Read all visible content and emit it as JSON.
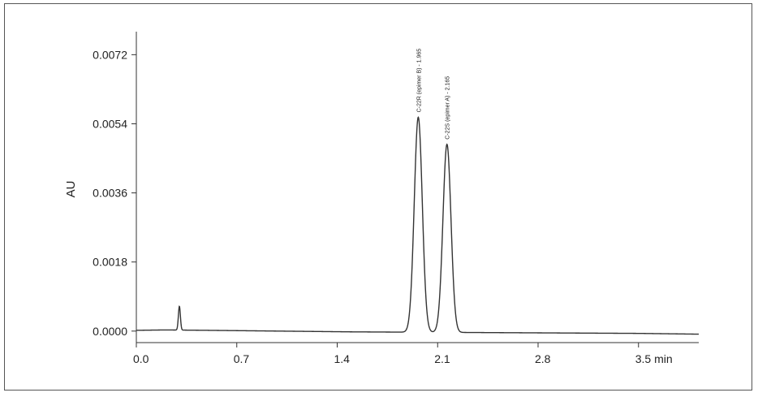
{
  "chart_data": {
    "type": "line",
    "ylabel": "AU",
    "xlabel": "",
    "x_tick_labels": [
      "0.0",
      "0.7",
      "1.4",
      "2.1",
      "2.8",
      "3.5 min"
    ],
    "x_ticks": [
      0.0,
      0.7,
      1.4,
      2.1,
      2.8,
      3.5
    ],
    "y_tick_labels": [
      "0.0000",
      "0.0018",
      "0.0036",
      "0.0054",
      "0.0072"
    ],
    "y_ticks": [
      0.0,
      0.0018,
      0.0036,
      0.0054,
      0.0072
    ],
    "xlim": [
      0.0,
      3.92
    ],
    "ylim": [
      -0.0003,
      0.0078
    ],
    "grid": false,
    "line_color": "#333333",
    "baseline": [
      {
        "x": 0.0,
        "y": 2e-05
      },
      {
        "x": 0.2,
        "y": 3e-05
      },
      {
        "x": 0.5,
        "y": 2e-05
      },
      {
        "x": 1.0,
        "y": 0.0
      },
      {
        "x": 1.5,
        "y": -2e-05
      },
      {
        "x": 2.5,
        "y": -4e-05
      },
      {
        "x": 3.0,
        "y": -5e-05
      },
      {
        "x": 3.5,
        "y": -6e-05
      },
      {
        "x": 3.92,
        "y": -8e-05
      }
    ],
    "peaks": [
      {
        "rt": 0.3,
        "height": 0.00062,
        "width": 0.007,
        "label": ""
      },
      {
        "rt": 1.965,
        "height": 0.0056,
        "width": 0.028,
        "label": "C-22R (epimer B) - 1.965"
      },
      {
        "rt": 2.165,
        "height": 0.0049,
        "width": 0.028,
        "label": "C-22S (epimer A) - 2.165"
      }
    ]
  }
}
